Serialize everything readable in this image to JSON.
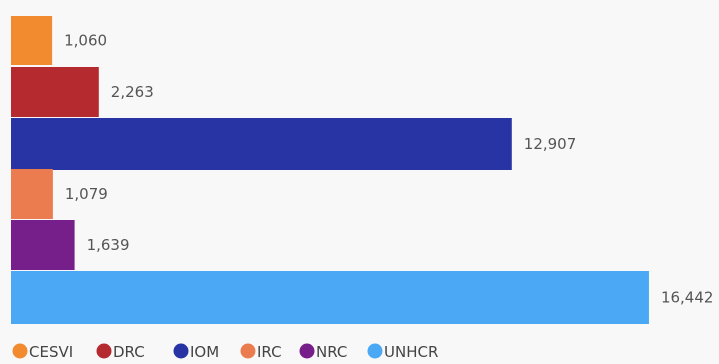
{
  "chart_data": {
    "type": "bar",
    "orientation": "horizontal",
    "categories": [
      "CESVI",
      "DRC",
      "IOM",
      "IRC",
      "NRC",
      "UNHCR"
    ],
    "values": [
      1060,
      2263,
      12907,
      1079,
      1639,
      16442
    ],
    "value_labels": [
      "1,060",
      "2,263",
      "12,907",
      "1,079",
      "1,639",
      "16,442"
    ],
    "colors": [
      "#f28a30",
      "#b52a2f",
      "#2834a3",
      "#eb7c4f",
      "#761f8a",
      "#4aa8f4"
    ],
    "legend": {
      "position": "bottom-left",
      "entries": [
        "CESVI",
        "DRC",
        "IOM",
        "IRC",
        "NRC",
        "UNHCR"
      ]
    },
    "axes_visible": false,
    "grid": false
  }
}
